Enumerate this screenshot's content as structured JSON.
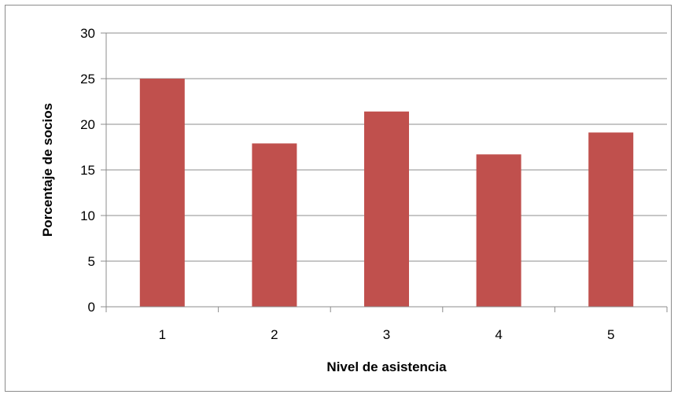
{
  "chart_data": {
    "type": "bar",
    "title": "",
    "xlabel": "Nivel de asistencia",
    "ylabel": "Porcentaje de socios",
    "categories": [
      "1",
      "2",
      "3",
      "4",
      "5"
    ],
    "series": [
      {
        "values": [
          25.0,
          17.9,
          21.4,
          16.7,
          19.1
        ]
      }
    ],
    "ylim": [
      0,
      30
    ],
    "yticks": [
      0,
      5,
      10,
      15,
      20,
      25,
      30
    ],
    "grid": "horizontal",
    "legend": "none",
    "colors": {
      "bar": "#c0504d",
      "grid": "#8c8c8c",
      "axis": "#8c8c8c"
    }
  }
}
